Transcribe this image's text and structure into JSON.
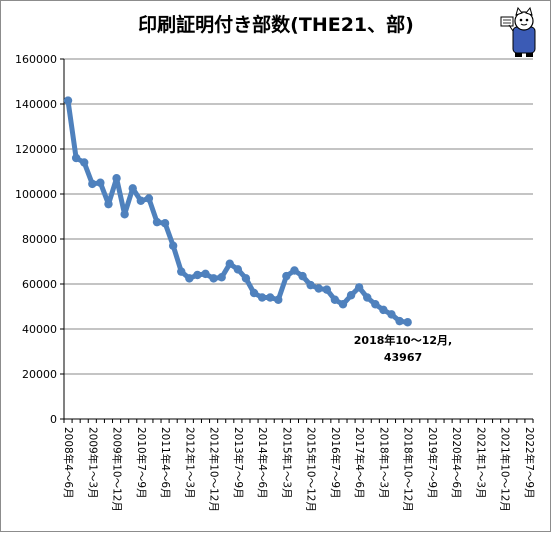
{
  "chart_data": {
    "type": "line",
    "title": "印刷証明付き部数(THE21、部)",
    "ylim": [
      0,
      160000
    ],
    "ytick_step": 20000,
    "yticks": [
      "0",
      "20000",
      "40000",
      "60000",
      "80000",
      "100000",
      "120000",
      "140000",
      "160000"
    ],
    "grid": "horizontal",
    "x_tick_labels": [
      "2008年4～6月",
      "2009年1～3月",
      "2009年10～12月",
      "2010年7～9月",
      "2011年4～6月",
      "2012年1～3月",
      "2012年10～12月",
      "2013年7～9月",
      "2014年4～6月",
      "2015年1～3月",
      "2015年10～12月",
      "2016年7～9月",
      "2017年4～6月",
      "2018年1～3月",
      "2018年10～12月",
      "2019年7～9月",
      "2020年4～6月",
      "2021年1～3月",
      "2021年10～12月",
      "2022年7～9月"
    ],
    "total_periods": 58,
    "series": [
      {
        "color": "#4f81bd",
        "values": [
          141500,
          116000,
          114000,
          104500,
          105000,
          95500,
          107000,
          91000,
          102500,
          97000,
          98000,
          87500,
          87000,
          77000,
          65500,
          62500,
          64000,
          64500,
          62500,
          63000,
          69000,
          66500,
          62500,
          56000,
          54000,
          54000,
          53000,
          63500,
          66000,
          63500,
          59500,
          58000,
          57500,
          53000,
          51000,
          55000,
          58500,
          54000,
          51000,
          48500,
          46500,
          43500,
          43000
        ]
      }
    ],
    "annotation": {
      "line1": "2018年10～12月,",
      "line2": "43967"
    }
  },
  "mascot_icon": "cat-mascot-icon"
}
